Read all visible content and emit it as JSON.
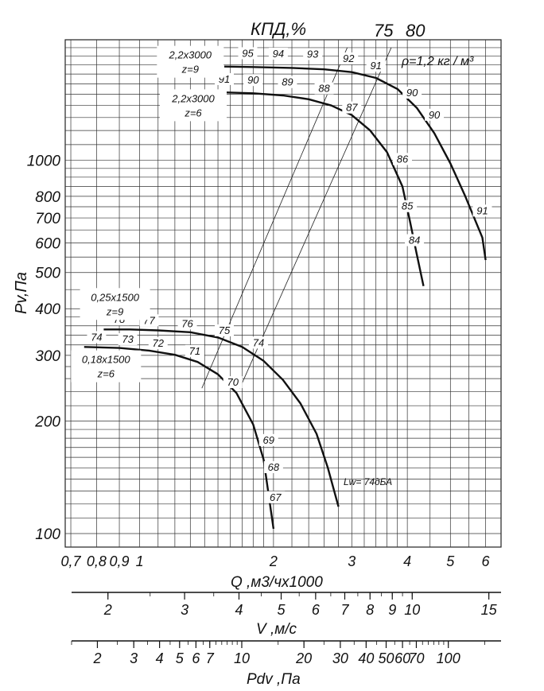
{
  "chart_data": {
    "type": "line",
    "scale": "log-log",
    "xlabel": "Q ,м3/чх1000",
    "ylabel": "Pv,Па",
    "efficiency_title": "КПД,%",
    "efficiency_lines": [
      "75",
      "80"
    ],
    "density_note": "ρ=1,2 кг / м³",
    "noise_label": "Lw= 74дБА",
    "x_ticks": [
      "0,7",
      "0,8",
      "0,9",
      "1",
      "2",
      "3",
      "4",
      "5",
      "6"
    ],
    "x_tick_values": [
      0.7,
      0.8,
      0.9,
      1,
      2,
      3,
      4,
      5,
      6
    ],
    "y_ticks": [
      "100",
      "200",
      "300",
      "400",
      "500",
      "600",
      "700",
      "800",
      "1000"
    ],
    "y_tick_values": [
      100,
      200,
      300,
      400,
      500,
      600,
      700,
      800,
      1000
    ],
    "xlim": [
      0.68,
      6.5
    ],
    "ylim": [
      92,
      2100
    ],
    "series": [
      {
        "name": "2,2x3000 z=9",
        "label_lines": [
          "2,2x3000",
          "z=9"
        ],
        "points": [
          [
            1.55,
            1780
          ],
          [
            1.8,
            1775
          ],
          [
            2.2,
            1765
          ],
          [
            2.6,
            1750
          ],
          [
            3.0,
            1720
          ],
          [
            3.4,
            1660
          ],
          [
            3.8,
            1550
          ],
          [
            4.2,
            1380
          ],
          [
            4.6,
            1180
          ],
          [
            5.0,
            980
          ],
          [
            5.4,
            800
          ],
          [
            5.9,
            620
          ],
          [
            6.0,
            540
          ]
        ],
        "efficiency_marks": [
          {
            "text": "95",
            "q": 1.75,
            "p": 1900
          },
          {
            "text": "94",
            "q": 2.05,
            "p": 1895
          },
          {
            "text": "93",
            "q": 2.45,
            "p": 1890
          },
          {
            "text": "92",
            "q": 2.95,
            "p": 1840
          },
          {
            "text": "91",
            "q": 3.4,
            "p": 1760
          },
          {
            "text": "90",
            "q": 4.1,
            "p": 1490
          },
          {
            "text": "90",
            "q": 4.6,
            "p": 1300
          },
          {
            "text": "91",
            "q": 5.9,
            "p": 720
          }
        ]
      },
      {
        "name": "2,2x3000 z=6",
        "label_lines": [
          "2,2x3000",
          "z=6"
        ],
        "points": [
          [
            1.5,
            1520
          ],
          [
            1.8,
            1510
          ],
          [
            2.1,
            1490
          ],
          [
            2.4,
            1455
          ],
          [
            2.7,
            1400
          ],
          [
            3.0,
            1320
          ],
          [
            3.3,
            1200
          ],
          [
            3.6,
            1050
          ],
          [
            3.9,
            850
          ],
          [
            4.05,
            690
          ],
          [
            4.2,
            560
          ],
          [
            4.35,
            460
          ]
        ],
        "efficiency_marks": [
          {
            "text": "91",
            "q": 1.55,
            "p": 1620
          },
          {
            "text": "90",
            "q": 1.8,
            "p": 1610
          },
          {
            "text": "89",
            "q": 2.15,
            "p": 1590
          },
          {
            "text": "88",
            "q": 2.6,
            "p": 1530
          },
          {
            "text": "87",
            "q": 3.0,
            "p": 1360
          },
          {
            "text": "86",
            "q": 3.9,
            "p": 990
          },
          {
            "text": "85",
            "q": 4.0,
            "p": 740
          },
          {
            "text": "84",
            "q": 4.15,
            "p": 600
          }
        ]
      },
      {
        "name": "0,25x1500 z=9",
        "label_lines": [
          "0,25x1500",
          "z=9"
        ],
        "points": [
          [
            0.83,
            352
          ],
          [
            0.95,
            352
          ],
          [
            1.1,
            350
          ],
          [
            1.3,
            346
          ],
          [
            1.5,
            335
          ],
          [
            1.7,
            316
          ],
          [
            1.9,
            290
          ],
          [
            2.1,
            258
          ],
          [
            2.3,
            223
          ],
          [
            2.5,
            185
          ],
          [
            2.65,
            150
          ],
          [
            2.8,
            118
          ]
        ],
        "efficiency_marks": [
          {
            "text": "78",
            "q": 0.9,
            "p": 368
          },
          {
            "text": "77",
            "q": 1.05,
            "p": 366
          },
          {
            "text": "76",
            "q": 1.28,
            "p": 359
          },
          {
            "text": "75",
            "q": 1.55,
            "p": 344
          },
          {
            "text": "74",
            "q": 1.85,
            "p": 319
          }
        ]
      },
      {
        "name": "0,18x1500 z=6",
        "label_lines": [
          "0,18x1500",
          "z=6"
        ],
        "points": [
          [
            0.75,
            316
          ],
          [
            0.9,
            314
          ],
          [
            1.05,
            309
          ],
          [
            1.2,
            301
          ],
          [
            1.35,
            288
          ],
          [
            1.5,
            267
          ],
          [
            1.65,
            238
          ],
          [
            1.8,
            196
          ],
          [
            1.9,
            158
          ],
          [
            2.0,
            103
          ]
        ],
        "efficiency_marks": [
          {
            "text": "74",
            "q": 0.8,
            "p": 330
          },
          {
            "text": "73",
            "q": 0.94,
            "p": 326
          },
          {
            "text": "72",
            "q": 1.1,
            "p": 318
          },
          {
            "text": "71",
            "q": 1.33,
            "p": 303
          },
          {
            "text": "70",
            "q": 1.62,
            "p": 250
          },
          {
            "text": "69",
            "q": 1.95,
            "p": 175
          },
          {
            "text": "68",
            "q": 2.0,
            "p": 148
          },
          {
            "text": "67",
            "q": 2.02,
            "p": 123
          }
        ]
      }
    ],
    "secondary_axes": [
      {
        "label": "V ,м/с",
        "ticks": [
          "2",
          "3",
          "4",
          "5",
          "6",
          "7",
          "8",
          "9",
          "10",
          "15"
        ],
        "tick_values": [
          2,
          3,
          4,
          5,
          6,
          7,
          8,
          9,
          10,
          15
        ],
        "range": [
          1.65,
          16
        ]
      },
      {
        "label": "Pdv ,Па",
        "ticks": [
          "2",
          "3",
          "4",
          "5",
          "6",
          "7",
          "10",
          "20",
          "30",
          "40",
          "50",
          "60",
          "70",
          "100"
        ],
        "tick_values": [
          2,
          3,
          4,
          5,
          6,
          7,
          10,
          20,
          30,
          40,
          50,
          60,
          70,
          100
        ],
        "range": [
          1.5,
          180
        ]
      }
    ]
  }
}
